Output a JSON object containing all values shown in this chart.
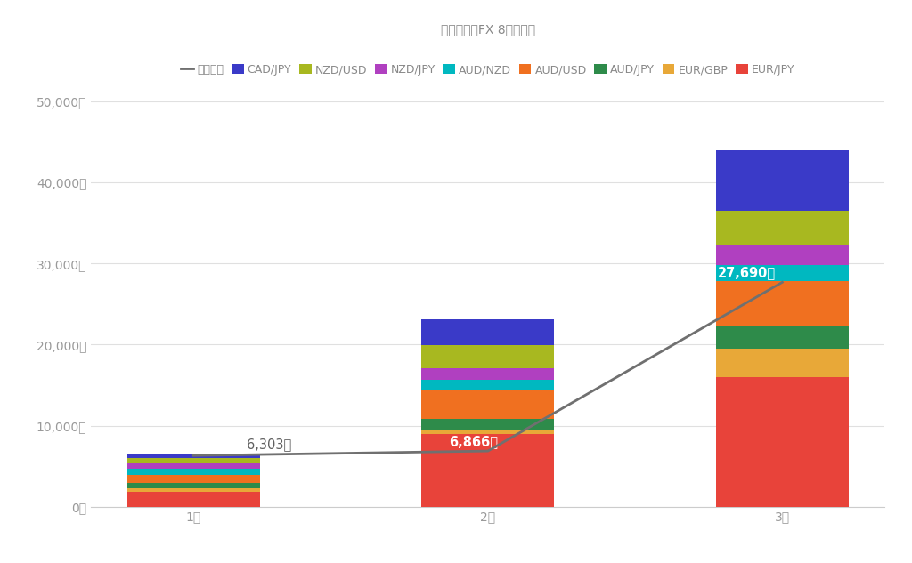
{
  "title": "トライオーFX 8通貨投賄",
  "categories": [
    "1週",
    "2週",
    "3週"
  ],
  "segments": {
    "EUR/JPY": [
      1800,
      9000,
      16000
    ],
    "EUR/GBP": [
      500,
      500,
      3500
    ],
    "AUD/JPY": [
      600,
      1300,
      2800
    ],
    "AUD/USD": [
      1000,
      3500,
      5500
    ],
    "AUD/NZD": [
      800,
      1400,
      2000
    ],
    "NZD/JPY": [
      600,
      1400,
      2500
    ],
    "NZD/USD": [
      700,
      2800,
      4200
    ],
    "CAD/JPY": [
      400,
      3200,
      7500
    ]
  },
  "colors": {
    "EUR/JPY": "#e8433a",
    "EUR/GBP": "#e8a838",
    "AUD/JPY": "#2e8b4a",
    "AUD/USD": "#f07020",
    "AUD/NZD": "#00b8c0",
    "NZD/JPY": "#b040c0",
    "NZD/USD": "#a8b820",
    "CAD/JPY": "#3a3ac8"
  },
  "line_values": [
    6303,
    6866,
    27690
  ],
  "ylim": [
    0,
    50000
  ],
  "yticks": [
    0,
    10000,
    20000,
    30000,
    40000,
    50000
  ],
  "ytick_labels": [
    "0円",
    "10,000円",
    "20,000円",
    "30,000円",
    "40,000円",
    "50,000円"
  ],
  "line_color": "#707070",
  "background_color": "#ffffff",
  "title_color": "#888888",
  "title_fontsize": 22,
  "legend_fontsize": 9,
  "axis_fontsize": 9,
  "ann1_text": "6,303円",
  "ann2_text": "6,866円",
  "ann3_text": "27,690円",
  "legend_items": [
    "現実利益",
    "CAD/JPY",
    "NZD/USD",
    "NZD/JPY",
    "AUD/NZD",
    "AUD/USD",
    "AUD/JPY",
    "EUR/GBP",
    "EUR/JPY"
  ]
}
